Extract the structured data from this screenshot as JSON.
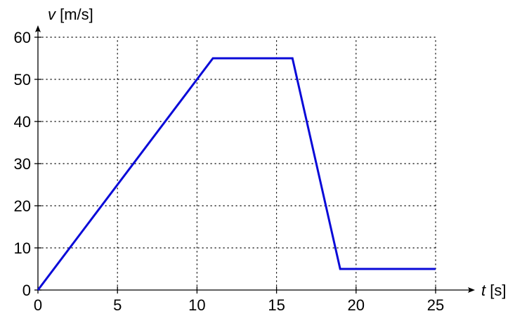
{
  "chart_data": {
    "type": "line",
    "x_axis": {
      "var": "t",
      "unit": " [s]",
      "range": [
        0,
        25
      ],
      "ticks": [
        0,
        5,
        10,
        15,
        20,
        25
      ],
      "tick_labels": [
        "0",
        "5",
        "10",
        "15",
        "20",
        "25"
      ]
    },
    "y_axis": {
      "var": "v",
      "unit": " [m/s]",
      "range": [
        0,
        60
      ],
      "ticks": [
        0,
        10,
        20,
        30,
        40,
        50,
        60
      ],
      "tick_labels": [
        "0",
        "10",
        "20",
        "30",
        "40",
        "50",
        "60"
      ]
    },
    "grid": true,
    "grid_style": "dotted",
    "series": [
      {
        "color": "#0a0ad8",
        "x": [
          0,
          11,
          16,
          19,
          25
        ],
        "y": [
          0,
          55,
          55,
          5,
          5
        ]
      }
    ],
    "colors": {
      "axis": "#000000",
      "grid": "#000000",
      "line": "#0a0ad8"
    }
  }
}
